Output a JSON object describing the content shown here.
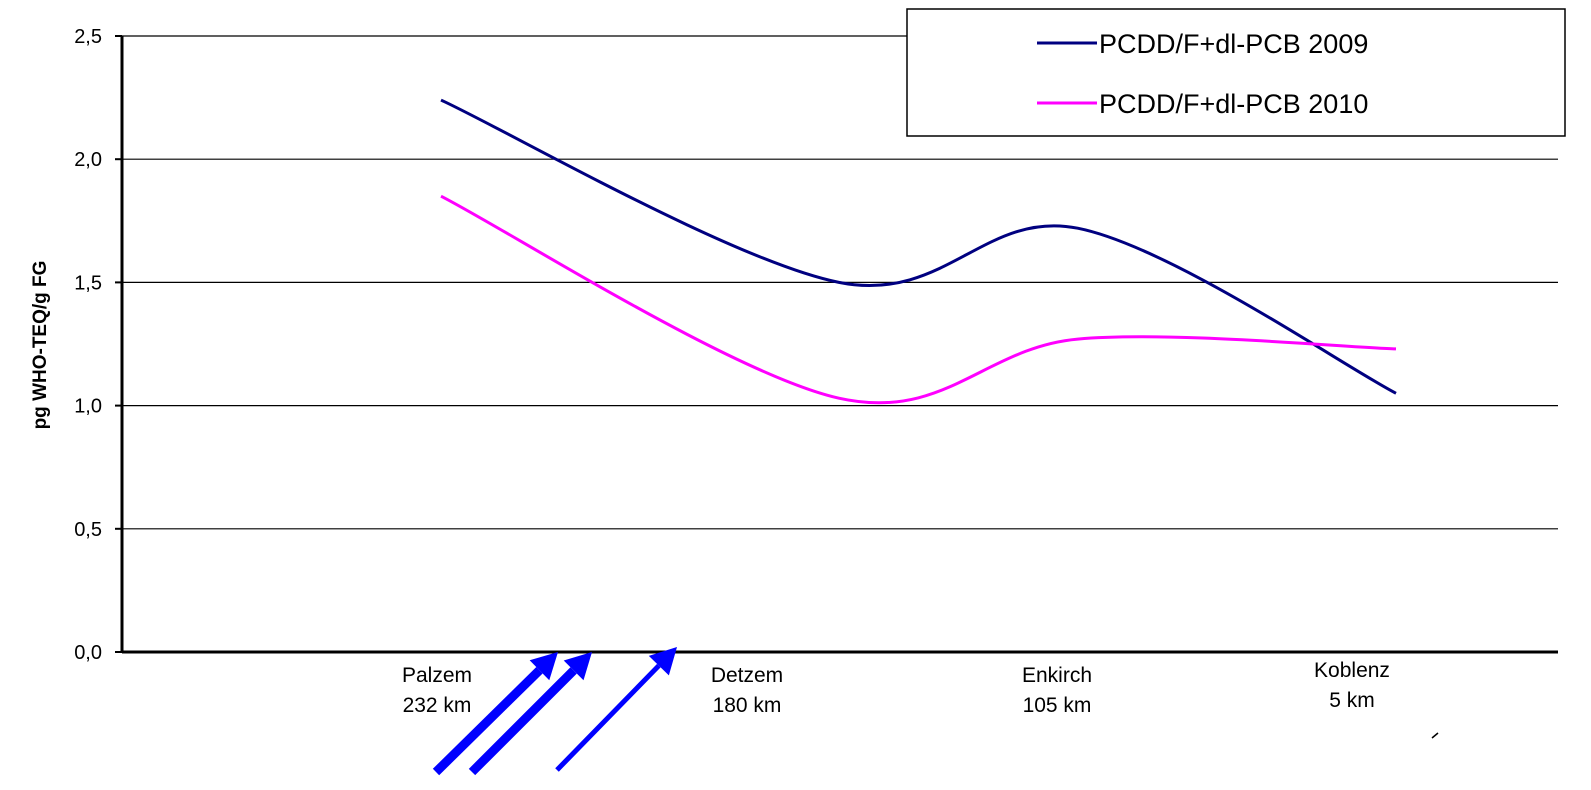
{
  "chart_data": {
    "type": "line",
    "title": "",
    "ylabel": "pg WHO-TEQ/g FG",
    "xlabel": "",
    "ylim": [
      0,
      2.5
    ],
    "y_ticks": [
      "0,0",
      "0,5",
      "1,0",
      "1,5",
      "2,0",
      "2,5"
    ],
    "y_tick_values": [
      0,
      0.5,
      1.0,
      1.5,
      2.0,
      2.5
    ],
    "grid": true,
    "legend_position": "top-right",
    "categories": [
      {
        "name": "Palzem",
        "distance": "232 km"
      },
      {
        "name": "Detzem",
        "distance": "180 km"
      },
      {
        "name": "Enkirch",
        "distance": "105 km"
      },
      {
        "name": "Koblenz",
        "distance": "5 km"
      }
    ],
    "x_points": [
      0,
      1.25,
      2,
      3
    ],
    "series": [
      {
        "name": "PCDD/F+dl-PCB 2009",
        "color": "#000080",
        "values": [
          2.24,
          1.5,
          1.72,
          1.05
        ]
      },
      {
        "name": "PCDD/F+dl-PCB 2010",
        "color": "#ff00ff",
        "values": [
          1.85,
          1.03,
          1.27,
          1.23
        ]
      }
    ],
    "annotations": {
      "arrow_color": "#0000ff",
      "arrow_count": 3
    }
  }
}
